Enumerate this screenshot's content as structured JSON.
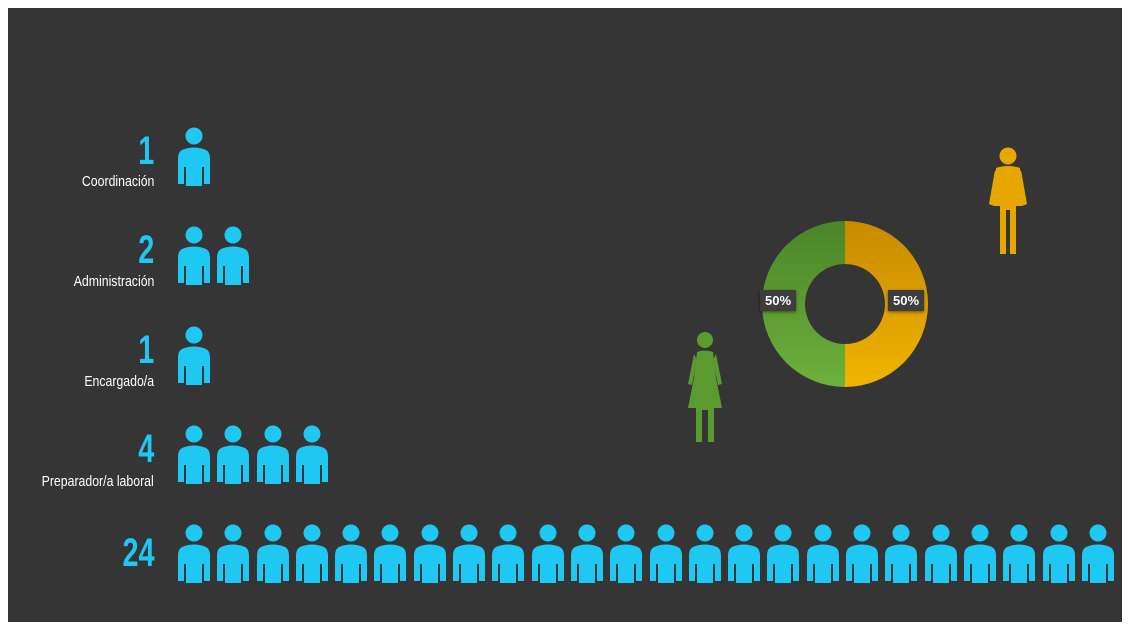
{
  "chart_data": [
    {
      "type": "pictogram",
      "categories": [
        "Coordinación",
        "Administración",
        "Encargado/a",
        "Preparador/a laboral",
        ""
      ],
      "values": [
        1,
        2,
        1,
        4,
        24
      ],
      "count_labels": [
        "1",
        "2",
        "1",
        "4",
        "24"
      ],
      "icon": "person-icon",
      "color": "#1ec8f2"
    },
    {
      "type": "pie",
      "donut": true,
      "categories": [
        "women",
        "men"
      ],
      "values": [
        50,
        50
      ],
      "data_labels": [
        "50%",
        "50%"
      ],
      "colors": [
        "#5a9a2e",
        "#e6a800"
      ],
      "icons": [
        "woman-icon",
        "man-icon"
      ]
    }
  ],
  "background_color": "#353535"
}
